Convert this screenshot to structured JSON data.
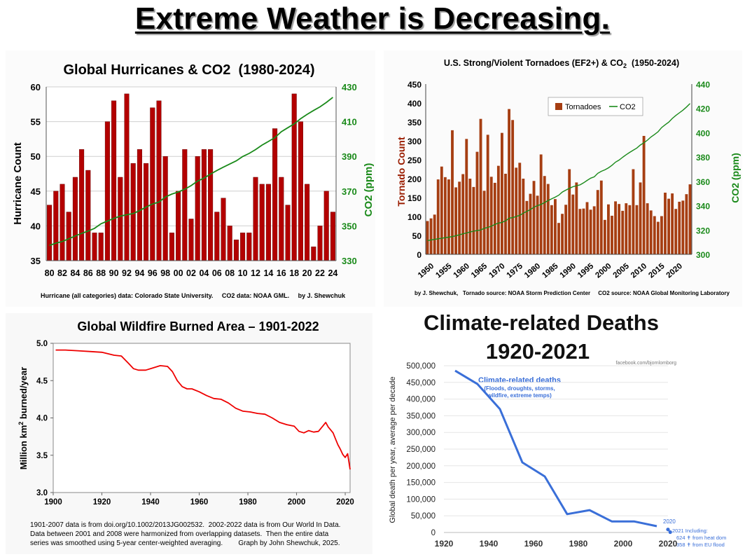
{
  "page": {
    "title": "Extreme Weather is Decreasing."
  },
  "chart_data": [
    {
      "id": "hurricanes",
      "type": "bar",
      "title": "Global Hurricanes & CO2  (1980-2024)",
      "ylabel": "Hurricane Count",
      "y2label": "CO2 (ppm)",
      "ylim": [
        35,
        60
      ],
      "y2lim": [
        330,
        430
      ],
      "yticks": [
        "35",
        "40",
        "45",
        "50",
        "55",
        "60"
      ],
      "y2ticks": [
        "330",
        "350",
        "370",
        "390",
        "410",
        "430"
      ],
      "categories": [
        1980,
        1981,
        1982,
        1983,
        1984,
        1985,
        1986,
        1987,
        1988,
        1989,
        1990,
        1991,
        1992,
        1993,
        1994,
        1995,
        1996,
        1997,
        1998,
        1999,
        2000,
        2001,
        2002,
        2003,
        2004,
        2005,
        2006,
        2007,
        2008,
        2009,
        2010,
        2011,
        2012,
        2013,
        2014,
        2015,
        2016,
        2017,
        2018,
        2019,
        2020,
        2021,
        2022,
        2023,
        2024
      ],
      "xtick_labels": [
        "80",
        "82",
        "84",
        "86",
        "88",
        "90",
        "92",
        "94",
        "96",
        "98",
        "00",
        "02",
        "04",
        "06",
        "08",
        "10",
        "12",
        "14",
        "16",
        "18",
        "20",
        "22",
        "24"
      ],
      "series": [
        {
          "name": "Hurricanes",
          "type": "bar",
          "color": "#b30000",
          "values": [
            43,
            45,
            46,
            42,
            47,
            51,
            48,
            39,
            39,
            55,
            58,
            47,
            59,
            49,
            51,
            49,
            57,
            58,
            50,
            39,
            45,
            51,
            41,
            50,
            51,
            51,
            42,
            44,
            40,
            38,
            39,
            39,
            47,
            46,
            46,
            54,
            47,
            43,
            59,
            55,
            46,
            37,
            40,
            45,
            42
          ]
        },
        {
          "name": "CO2",
          "type": "line",
          "color": "#1a8a1a",
          "values": [
            338.7,
            340.1,
            341.0,
            342.6,
            344.2,
            345.7,
            347.0,
            348.6,
            351.2,
            352.8,
            354.3,
            355.6,
            356.4,
            357.1,
            358.8,
            360.8,
            362.6,
            363.7,
            366.6,
            368.3,
            369.5,
            371.1,
            373.2,
            375.8,
            377.5,
            379.8,
            381.9,
            383.8,
            385.6,
            387.4,
            389.9,
            391.7,
            393.9,
            396.5,
            398.6,
            400.8,
            404.2,
            406.5,
            408.7,
            411.7,
            414.2,
            416.4,
            418.5,
            421.1,
            424.0
          ]
        }
      ],
      "footnote": "Hurricane (all categories) data: Colorado State University.     CO2 data: NOAA GML.     by J. Shewchuk"
    },
    {
      "id": "tornadoes",
      "type": "bar",
      "title": "U.S. Strong/Violent Tornadoes (EF2+) & CO",
      "title_sub": "2",
      "title_tail": "  (1950-2024)",
      "ylabel": "Tornado Count",
      "y2label": "CO2 (ppm)",
      "ylim": [
        0,
        450
      ],
      "y2lim": [
        300,
        440
      ],
      "yticks": [
        "0",
        "50",
        "100",
        "150",
        "200",
        "250",
        "300",
        "350",
        "400",
        "450"
      ],
      "y2ticks": [
        "300",
        "320",
        "340",
        "360",
        "380",
        "400",
        "420",
        "440"
      ],
      "xtick_labels": [
        "1950",
        "1955",
        "1960",
        "1965",
        "1970",
        "1975",
        "1980",
        "1985",
        "1990",
        "1995",
        "2000",
        "2005",
        "2010",
        "2015",
        "2020"
      ],
      "legend": [
        "Tornadoes",
        "CO2"
      ],
      "series": [
        {
          "name": "Tornadoes",
          "type": "bar",
          "color": "#a63e12",
          "values": [
            88,
            95,
            105,
            198,
            232,
            204,
            198,
            328,
            177,
            192,
            212,
            305,
            200,
            178,
            271,
            358,
            168,
            316,
            205,
            189,
            234,
            321,
            213,
            384,
            355,
            229,
            242,
            200,
            141,
            160,
            194,
            155,
            264,
            207,
            186,
            130,
            146,
            83,
            107,
            131,
            225,
            158,
            190,
            120,
            121,
            138,
            118,
            127,
            170,
            195,
            91,
            132,
            102,
            140,
            133,
            115,
            135,
            130,
            225,
            130,
            190,
            313,
            135,
            116,
            101,
            86,
            101,
            163,
            147,
            161,
            120,
            139,
            142,
            159,
            185
          ]
        },
        {
          "name": "CO2",
          "type": "line",
          "color": "#1a8a1a",
          "values": [
            311.3,
            311.8,
            312.3,
            312.8,
            313.2,
            313.7,
            314.1,
            314.6,
            315.3,
            316.0,
            316.9,
            317.6,
            318.4,
            319.0,
            319.6,
            320.0,
            321.4,
            322.2,
            323.1,
            324.6,
            325.7,
            326.3,
            327.5,
            329.7,
            330.2,
            331.1,
            332.1,
            333.8,
            335.4,
            336.8,
            338.7,
            340.1,
            341.0,
            342.6,
            344.2,
            345.7,
            347.0,
            348.6,
            351.2,
            352.8,
            354.3,
            355.6,
            356.4,
            357.1,
            358.8,
            360.8,
            362.6,
            363.7,
            366.6,
            368.3,
            369.5,
            371.1,
            373.2,
            375.8,
            377.5,
            379.8,
            381.9,
            383.8,
            385.6,
            387.4,
            389.9,
            391.7,
            393.9,
            396.5,
            398.6,
            400.8,
            404.2,
            406.5,
            408.7,
            411.7,
            414.2,
            416.4,
            418.5,
            421.1,
            424.0
          ]
        }
      ],
      "footnote": "by J. Shewchuk,   Tornado source: NOAA Storm Prediction Center     CO2 source: NOAA Global Monitoring Laboratory"
    },
    {
      "id": "wildfire",
      "type": "line",
      "title": "Global Wildfire Burned Area – 1901-2022",
      "ylabel_pre": "Million km",
      "ylabel_sup": "2",
      "ylabel_post": " burned/year",
      "xlim": [
        1900,
        2022
      ],
      "ylim": [
        3.0,
        5.0
      ],
      "yticks": [
        "3.0",
        "3.5",
        "4.0",
        "4.5",
        "5.0"
      ],
      "xticks": [
        "1900",
        "1920",
        "1940",
        "1960",
        "1980",
        "2000",
        "2020"
      ],
      "color": "#ee0000",
      "x": [
        1901,
        1905,
        1910,
        1915,
        1920,
        1925,
        1928,
        1931,
        1933,
        1935,
        1938,
        1941,
        1944,
        1947,
        1949,
        1951,
        1953,
        1955,
        1957,
        1960,
        1963,
        1966,
        1969,
        1972,
        1975,
        1978,
        1981,
        1984,
        1987,
        1990,
        1993,
        1996,
        1999,
        2001,
        2003,
        2005,
        2007,
        2009,
        2011,
        2012,
        2013,
        2015,
        2016,
        2017,
        2018,
        2019,
        2020,
        2021,
        2022
      ],
      "y": [
        4.91,
        4.91,
        4.9,
        4.89,
        4.88,
        4.84,
        4.83,
        4.73,
        4.66,
        4.64,
        4.64,
        4.67,
        4.7,
        4.69,
        4.62,
        4.5,
        4.42,
        4.39,
        4.39,
        4.35,
        4.3,
        4.26,
        4.25,
        4.2,
        4.13,
        4.09,
        4.08,
        4.06,
        4.05,
        4.0,
        3.94,
        3.91,
        3.89,
        3.82,
        3.8,
        3.83,
        3.81,
        3.82,
        3.9,
        3.94,
        3.88,
        3.8,
        3.72,
        3.64,
        3.58,
        3.51,
        3.47,
        3.52,
        3.31
      ],
      "footnote_lines": [
        "1901-2007 data is from doi.org/10.1002/2013JG002532.  2002-2022 data is from Our World In Data.",
        "Data between 2001 and 2008 were harmonized from overlapping datasets.  Then the entire data",
        "series was smoothed using 5-year center-weighted averaging.        Graph by John Shewchuk, 2025."
      ]
    },
    {
      "id": "climate-deaths",
      "type": "line",
      "title_line1": "Climate-related Deaths",
      "title_line2": "1920-2021",
      "watermark": "facebook.com/bjornlomborg",
      "ylabel": "Global death per year, average per decade",
      "xlim": [
        1920,
        2020
      ],
      "ylim": [
        0,
        500000
      ],
      "yticks": [
        "0",
        "50,000",
        "100,000",
        "150,000",
        "200,000",
        "250,000",
        "300,000",
        "350,000",
        "400,000",
        "450,000",
        "500,000"
      ],
      "xticks": [
        "1920",
        "1940",
        "1960",
        "1980",
        "2000",
        "2020"
      ],
      "color": "#3a6fd8",
      "x": [
        1925,
        1935,
        1945,
        1955,
        1965,
        1975,
        1985,
        1995,
        2005,
        2015
      ],
      "y": [
        485000,
        445000,
        370000,
        210000,
        168000,
        55000,
        67000,
        33000,
        33000,
        19000
      ],
      "point_x": [
        2020,
        2021
      ],
      "point_y": [
        9000,
        1000
      ],
      "series_label": "Climate-related deaths",
      "series_sublabel_1": "(Floods, droughts, storms,",
      "series_sublabel_2": "wildfire, extreme temps)",
      "point_label": "2020",
      "annot_1": "2021 Including:",
      "annot_2": "624 ✝ from heat dom",
      "annot_3": "358 ✝ from EU flood"
    }
  ]
}
